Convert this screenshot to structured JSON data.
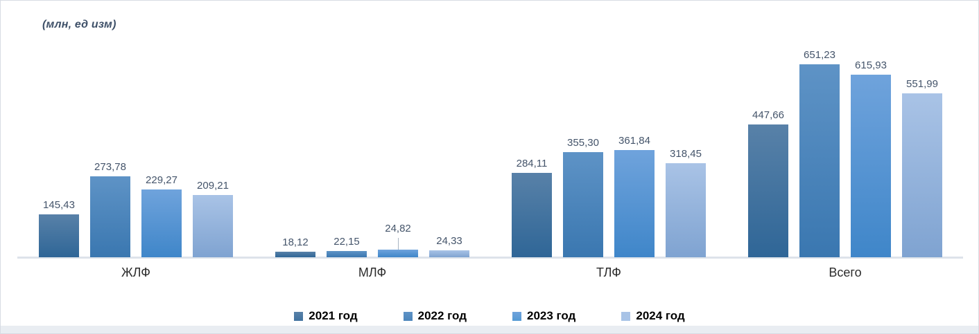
{
  "title": "(млн, ед изм)",
  "chart_data": {
    "type": "bar",
    "title": "(млн, ед изм)",
    "categories": [
      "ЖЛФ",
      "МЛФ",
      "ТЛФ",
      "Всего"
    ],
    "series": [
      {
        "name": "2021 год",
        "values": [
          145.43,
          18.12,
          284.11,
          447.66
        ],
        "labels": [
          "145,43",
          "18,12",
          "284,11",
          "447,66"
        ],
        "color_top": "#5881a8",
        "color_bottom": "#2f6697",
        "legend_color": "#41729f"
      },
      {
        "name": "2022 год",
        "values": [
          273.78,
          22.15,
          355.3,
          651.23
        ],
        "labels": [
          "273,78",
          "22,15",
          "355,30",
          "651,23"
        ],
        "color_top": "#5e93c6",
        "color_bottom": "#3a77b0",
        "legend_color": "#4c86bb"
      },
      {
        "name": "2023 год",
        "values": [
          229.27,
          24.82,
          361.84,
          615.93
        ],
        "labels": [
          "229,27",
          "24,82",
          "361,84",
          "615,93"
        ],
        "color_top": "#6fa3dc",
        "color_bottom": "#3f86c9",
        "legend_color": "#549ad4"
      },
      {
        "name": "2024 год",
        "values": [
          209.21,
          24.33,
          318.45,
          551.99
        ],
        "labels": [
          "209,21",
          "24,33",
          "318,45",
          "551,99"
        ],
        "color_top": "#a9c3e6",
        "color_bottom": "#7fa3d1",
        "legend_color": "#a7c3e7"
      }
    ],
    "callout": {
      "series_index": 2,
      "category_index": 1
    },
    "legend_position": "bottom",
    "grid": false,
    "ylim": [
      0,
      700
    ],
    "xlabel": "",
    "ylabel": ""
  }
}
